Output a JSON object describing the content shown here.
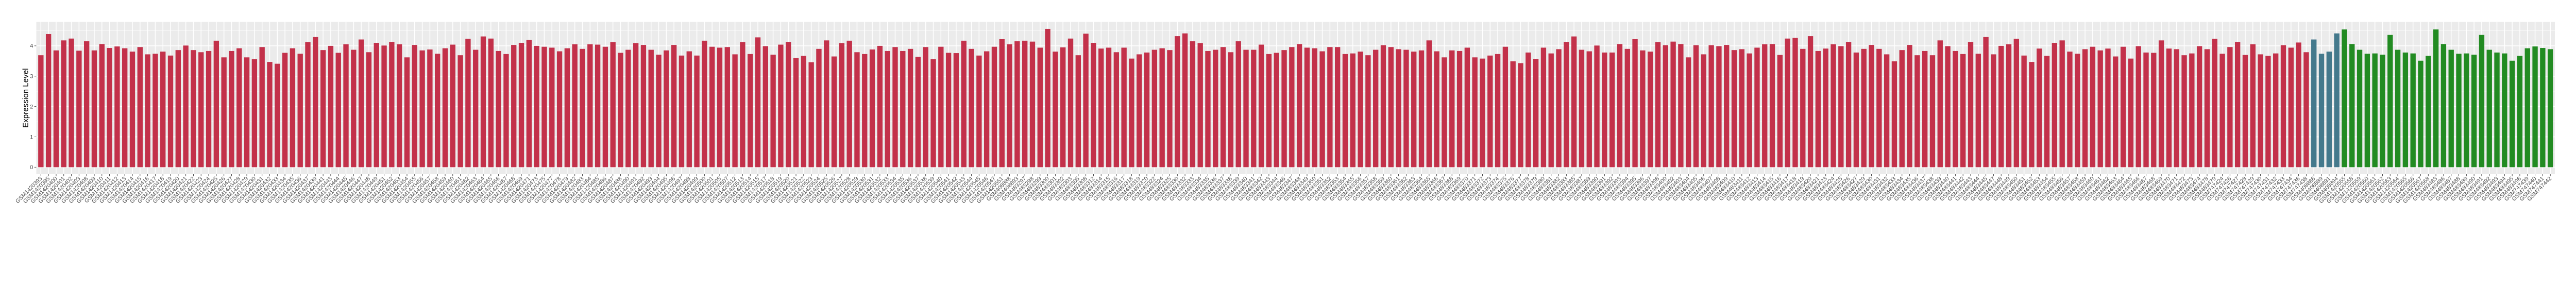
{
  "chart_data": {
    "type": "bar",
    "title": "",
    "xlabel": "",
    "ylabel": "Expression Level",
    "ylim": [
      -0.23,
      4.79
    ],
    "yticks": [
      0,
      1,
      2,
      3,
      4
    ],
    "grid": true,
    "legend": "none",
    "panel_background": "#EBEBEB",
    "x_label_rotation_deg": 45,
    "series": [
      {
        "color": "#C3314A",
        "categories": [
          "GSM1420393",
          "GSM1420395",
          "GSM1420400",
          "GSM1420401",
          "GSM1420402",
          "GSM1420403",
          "GSM1420408",
          "GSM1420409",
          "GSM1420410",
          "GSM1420411",
          "GSM1420412",
          "GSM1420413",
          "GSM1420414",
          "GSM1420415",
          "GSM1420416",
          "GSM1420417",
          "GSM1420418",
          "GSM1420419",
          "GSM1420420",
          "GSM1420421",
          "GSM1420422",
          "GSM1420423",
          "GSM1420424",
          "GSM1420425",
          "GSM1420426",
          "GSM1420427",
          "GSM1420428",
          "GSM1420429",
          "GSM1420430",
          "GSM1420431",
          "GSM1420432",
          "GSM1420433",
          "GSM1420434",
          "GSM1420435",
          "GSM1420436",
          "GSM1420437",
          "GSM1420439",
          "GSM1420441",
          "GSM1420443",
          "GSM1420444",
          "GSM1420445",
          "GSM1420446",
          "GSM1420447",
          "GSM1420448",
          "GSM1420449",
          "GSM1420451",
          "GSM1420452",
          "GSM1420453",
          "GSM1420454",
          "GSM1420455",
          "GSM1420456",
          "GSM1420457",
          "GSM1420458",
          "GSM1420459",
          "GSM1420460",
          "GSM1420461",
          "GSM1420462",
          "GSM1420463",
          "GSM1420464",
          "GSM1420465",
          "GSM1420466",
          "GSM1420467",
          "GSM1420468",
          "GSM1420469",
          "GSM1420471",
          "GSM1420473",
          "GSM1420475",
          "GSM1420477",
          "GSM1420478",
          "GSM1420479",
          "GSM1420482",
          "GSM1420483",
          "GSM1420484",
          "GSM1420485",
          "GSM1420486",
          "GSM1420487",
          "GSM1420488",
          "GSM1420490",
          "GSM1420491",
          "GSM1420492",
          "GSM1420493",
          "GSM1420494",
          "GSM1420495",
          "GSM1420496",
          "GSM1420497",
          "GSM1420498",
          "GSM1420499",
          "GSM1420500",
          "GSM1420501",
          "GSM1420505",
          "GSM1420507",
          "GSM1420512",
          "GSM1420513",
          "GSM1420514",
          "GSM1420515",
          "GSM1420517",
          "GSM1420518",
          "GSM1420519",
          "GSM1420520",
          "GSM1420521",
          "GSM1420522",
          "GSM1420523",
          "GSM1420524",
          "GSM1420525",
          "GSM1420526",
          "GSM1420527",
          "GSM1420528",
          "GSM1420529",
          "GSM1420530",
          "GSM1420531",
          "GSM1420532",
          "GSM1420533",
          "GSM1420534",
          "GSM1420535",
          "GSM1420536",
          "GSM1420537",
          "GSM1420538",
          "GSM1420539",
          "GSM1420540",
          "GSM1420541",
          "GSM1420542",
          "GSM1420543",
          "GSM1420544",
          "GSM1420545",
          "GSM1420546",
          "GSM1420547",
          "GSM1420551",
          "GSM408888",
          "GSM408893",
          "GSM483297",
          "GSM483298",
          "GSM483299",
          "GSM483300",
          "GSM483301",
          "GSM483302",
          "GSM483303",
          "GSM483305",
          "GSM483308",
          "GSM483312",
          "GSM483314",
          "GSM483315",
          "GSM483316",
          "GSM483317",
          "GSM483318",
          "GSM483319",
          "GSM483320",
          "GSM483322",
          "GSM483324",
          "GSM483325",
          "GSM483330",
          "GSM483332",
          "GSM483333",
          "GSM483334",
          "GSM483335",
          "GSM483336",
          "GSM483337",
          "GSM483338",
          "GSM483339",
          "GSM483340",
          "GSM483341",
          "GSM483342",
          "GSM483343",
          "GSM483344",
          "GSM483346",
          "GSM483347",
          "GSM483348",
          "GSM483349",
          "GSM483350",
          "GSM483351",
          "GSM483352",
          "GSM483353",
          "GSM483354",
          "GSM483355",
          "GSM483356",
          "GSM483357",
          "GSM483358",
          "GSM483359",
          "GSM483360",
          "GSM483361",
          "GSM483362",
          "GSM483363",
          "GSM483364",
          "GSM483365",
          "GSM483366",
          "GSM483367",
          "GSM483368",
          "GSM483369",
          "GSM483370",
          "GSM483371",
          "GSM483372",
          "GSM483373",
          "GSM483374",
          "GSM483375",
          "GSM483376",
          "GSM483377",
          "GSM483378",
          "GSM483379",
          "GSM483380",
          "GSM483381",
          "GSM483382",
          "GSM483383",
          "GSM483385",
          "GSM483387",
          "GSM483389",
          "GSM483390",
          "GSM483391",
          "GSM483392",
          "GSM483393",
          "GSM483394",
          "GSM483395",
          "GSM483396",
          "GSM483397",
          "GSM483398",
          "GSM483400",
          "GSM483402",
          "GSM483403",
          "GSM483404",
          "GSM483405",
          "GSM483406",
          "GSM483407",
          "GSM483408",
          "GSM483409",
          "GSM483410",
          "GSM483411",
          "GSM483412",
          "GSM483413",
          "GSM483414",
          "GSM483415",
          "GSM483416",
          "GSM483417",
          "GSM483418",
          "GSM483419",
          "GSM483420",
          "GSM483421",
          "GSM483423",
          "GSM483424",
          "GSM483425",
          "GSM483426",
          "GSM483427",
          "GSM483429",
          "GSM483430",
          "GSM483431",
          "GSM483432",
          "GSM483433",
          "GSM483434",
          "GSM483435",
          "GSM483436",
          "GSM483437",
          "GSM483438",
          "GSM483439",
          "GSM483440",
          "GSM483441",
          "GSM483442",
          "GSM483443",
          "GSM483444",
          "GSM483445",
          "GSM483447",
          "GSM483448",
          "GSM483449",
          "GSM483450",
          "GSM483451",
          "GSM483452",
          "GSM483453",
          "GSM483454",
          "GSM483455",
          "GSM483456",
          "GSM483457",
          "GSM483458",
          "GSM483459",
          "GSM483460",
          "GSM483461",
          "GSM483462",
          "GSM483463",
          "GSM483464",
          "GSM483465",
          "GSM483466",
          "GSM483467",
          "GSM483468",
          "GSM483469",
          "GSM483470",
          "GSM483471",
          "GSM483472",
          "GSM483473",
          "GSM483474",
          "GSM483478",
          "GSM483479",
          "GSM747424",
          "GSM747426",
          "GSM747427",
          "GSM747428",
          "GSM747429",
          "GSM747430",
          "GSM747431",
          "GSM747432",
          "GSM747433",
          "GSM747434",
          "GSM747436",
          "GSM747438"
        ],
        "values": [
          3.69,
          4.39,
          3.85,
          4.18,
          4.24,
          3.84,
          4.15,
          3.85,
          4.06,
          3.93,
          3.98,
          3.92,
          3.81,
          3.96,
          3.72,
          3.74,
          3.81,
          3.68,
          3.86,
          4.01,
          3.86,
          3.79,
          3.83,
          4.17,
          3.62,
          3.83,
          3.92,
          3.62,
          3.56,
          3.96,
          3.47,
          3.41,
          3.77,
          3.92,
          3.74,
          4.12,
          4.29,
          3.86,
          4.0,
          3.77,
          4.05,
          3.87,
          4.21,
          3.79,
          4.1,
          4.01,
          4.13,
          4.05,
          3.62,
          4.03,
          3.85,
          3.88,
          3.74,
          3.92,
          4.04,
          3.69,
          4.23,
          3.87,
          4.31,
          4.24,
          3.83,
          3.73,
          4.03,
          4.1,
          4.19,
          4.0,
          3.97,
          3.94,
          3.82,
          3.92,
          4.05,
          3.9,
          4.05,
          4.04,
          3.97,
          4.12,
          3.77,
          3.87,
          4.09,
          4.03,
          3.87,
          3.71,
          3.85,
          4.03,
          3.68,
          3.82,
          3.68,
          4.17,
          3.97,
          3.94,
          3.96,
          3.72,
          4.12,
          3.73,
          4.28,
          3.99,
          3.71,
          4.04,
          4.13,
          3.6,
          3.67,
          3.46,
          3.9,
          4.18,
          3.65,
          4.09,
          4.17,
          3.79,
          3.73,
          3.88,
          4.0,
          3.83,
          3.96,
          3.83,
          3.9,
          3.64,
          3.96,
          3.56,
          3.97,
          3.77,
          3.76,
          4.17,
          3.9,
          3.68,
          3.82,
          3.97,
          4.22,
          4.05,
          4.15,
          4.17,
          4.14,
          3.94,
          4.56,
          3.81,
          3.95,
          4.24,
          3.69,
          4.4,
          4.1,
          3.91,
          3.94,
          3.79,
          3.94,
          3.58,
          3.72,
          3.78,
          3.87,
          3.92,
          3.86,
          4.32,
          4.41,
          4.15,
          4.09,
          3.83,
          3.87,
          3.96,
          3.79,
          4.15,
          3.87,
          3.87,
          4.04,
          3.73,
          3.77,
          3.86,
          3.96,
          4.06,
          3.94,
          3.92,
          3.82,
          3.96,
          3.96,
          3.73,
          3.75,
          3.81,
          3.69,
          3.87,
          4.02,
          3.96,
          3.89,
          3.87,
          3.81,
          3.85,
          4.18,
          3.82,
          3.62,
          3.85,
          3.83,
          3.94,
          3.62,
          3.58,
          3.68,
          3.73,
          3.97,
          3.49,
          3.43,
          3.78,
          3.57,
          3.94,
          3.75,
          3.89,
          4.13,
          4.31,
          3.87,
          3.82,
          4.01,
          3.78,
          3.78,
          4.06,
          3.9,
          4.22,
          3.85,
          3.81,
          4.12,
          4.02,
          4.14,
          4.06,
          3.62,
          4.02,
          3.72,
          4.02,
          3.99,
          4.03,
          3.86,
          3.89,
          3.75,
          3.94,
          4.05,
          4.06,
          3.7,
          4.24,
          4.26,
          3.9,
          4.32,
          3.83,
          3.91,
          4.05,
          3.99,
          4.13,
          3.78,
          3.9,
          4.03,
          3.9,
          3.72,
          3.49,
          3.86,
          4.03,
          3.69,
          3.83,
          3.69,
          4.18,
          3.99,
          3.83,
          3.73,
          4.13,
          3.74,
          4.29,
          3.72,
          4.0,
          4.05,
          4.23,
          3.68,
          3.47,
          3.91,
          3.67,
          4.1,
          4.18,
          3.81,
          3.74,
          3.89,
          3.97,
          3.85,
          3.91,
          3.65,
          3.97,
          3.58,
          3.99,
          3.78,
          3.77,
          4.18,
          3.91,
          3.89,
          3.69,
          3.75,
          3.99,
          3.89,
          4.23,
          3.74,
          3.96,
          4.13,
          3.7,
          4.05,
          3.72,
          3.67,
          3.75,
          4.02,
          3.94,
          4.11,
          3.79
        ]
      },
      {
        "color": "#44798C",
        "categories": [
          "GSM408886",
          "GSM408889",
          "GSM408891",
          "GSM408894"
        ],
        "values": [
          4.21,
          3.74,
          3.81,
          4.41
        ]
      },
      {
        "color": "#228B22",
        "categories": [
          "GSM1420555",
          "GSM1420558",
          "GSM1420559",
          "GSM1420560",
          "GSM1420561",
          "GSM1420562",
          "GSM1420563",
          "GSM1420564",
          "GSM1420565",
          "GSM1420566",
          "GSM1420567",
          "GSM1420568",
          "GSM483483",
          "GSM483486",
          "GSM483487",
          "GSM483488",
          "GSM483489",
          "GSM483490",
          "GSM483491",
          "GSM483492",
          "GSM483493",
          "GSM483494",
          "GSM483495",
          "GSM483496",
          "GSM747439",
          "GSM747440",
          "GSM747441",
          "GSM747442"
        ],
        "values": [
          4.54,
          4.06,
          3.87,
          3.74,
          3.75,
          3.71,
          4.36,
          3.87,
          3.78,
          3.75,
          3.51,
          3.67,
          4.54,
          4.06,
          3.87,
          3.74,
          3.75,
          3.71,
          4.36,
          3.87,
          3.78,
          3.75,
          3.51,
          3.67,
          3.92,
          3.98,
          3.93,
          3.89
        ]
      }
    ]
  }
}
